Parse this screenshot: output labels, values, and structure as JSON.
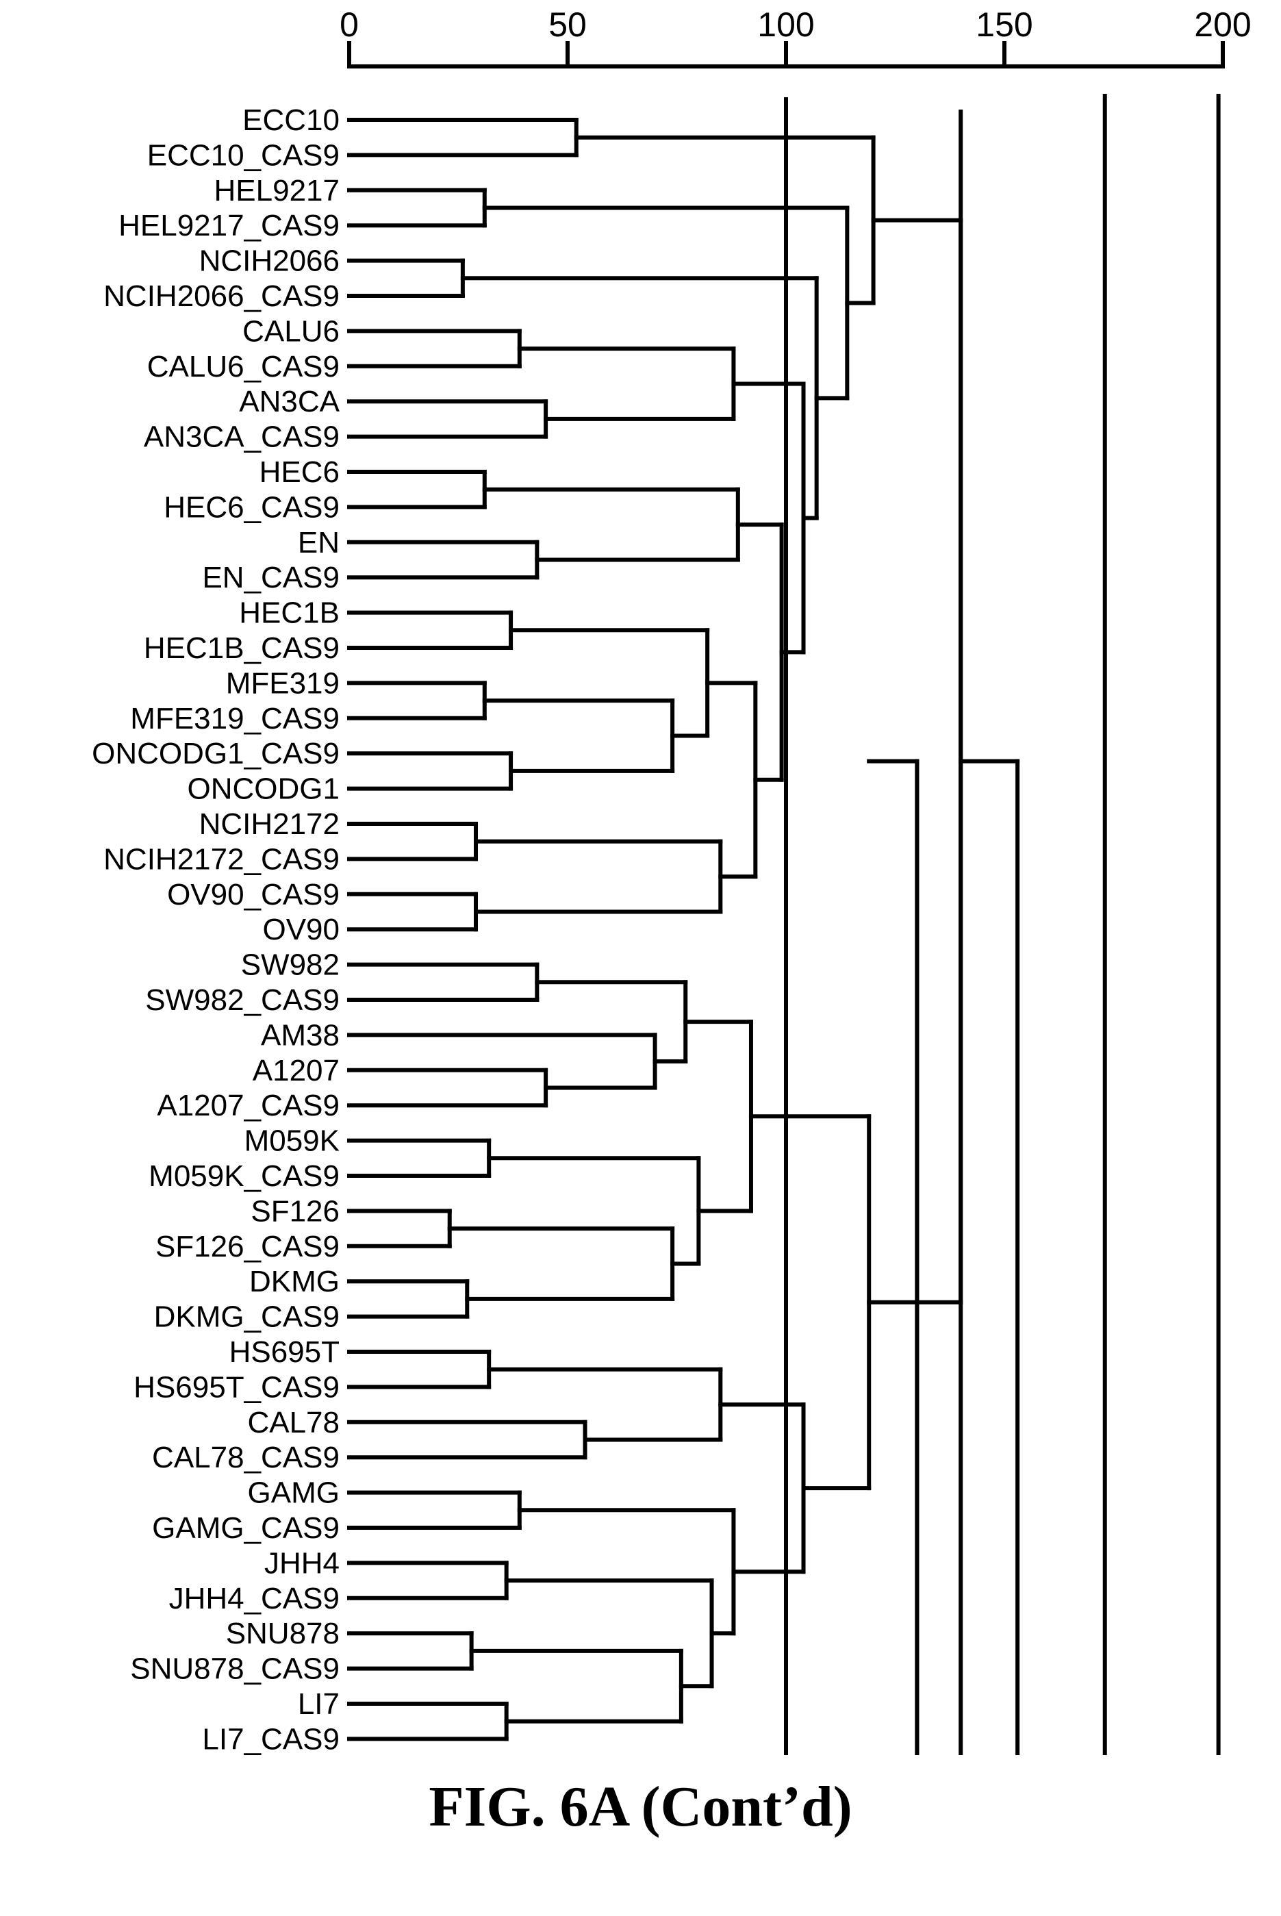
{
  "caption": "FIG. 6A (Cont’d)",
  "chart_data": {
    "type": "dendrogram",
    "orientation": "horizontal",
    "axis_position": "top",
    "xlim": [
      0,
      200
    ],
    "xticks": [
      0,
      50,
      100,
      150,
      200
    ],
    "xtick_labels": [
      "0",
      "50",
      "100",
      "150",
      "200"
    ],
    "leaves": [
      "ECC10",
      "ECC10_CAS9",
      "HEL9217",
      "HEL9217_CAS9",
      "NCIH2066",
      "NCIH2066_CAS9",
      "CALU6",
      "CALU6_CAS9",
      "AN3CA",
      "AN3CA_CAS9",
      "HEC6",
      "HEC6_CAS9",
      "EN",
      "EN_CAS9",
      "HEC1B",
      "HEC1B_CAS9",
      "MFE319",
      "MFE319_CAS9",
      "ONCODG1_CAS9",
      "ONCODG1",
      "NCIH2172",
      "NCIH2172_CAS9",
      "OV90_CAS9",
      "OV90",
      "SW982",
      "SW982_CAS9",
      "AM38",
      "A1207",
      "A1207_CAS9",
      "M059K",
      "M059K_CAS9",
      "SF126",
      "SF126_CAS9",
      "DKMG",
      "DKMG_CAS9",
      "HS695T",
      "HS695T_CAS9",
      "CAL78",
      "CAL78_CAS9",
      "GAMG",
      "GAMG_CAS9",
      "JHH4",
      "JHH4_CAS9",
      "SNU878",
      "SNU878_CAS9",
      "LI7",
      "LI7_CAS9"
    ],
    "merges": [
      {
        "id": "n1",
        "children": [
          0,
          1
        ],
        "height": 52
      },
      {
        "id": "n2",
        "children": [
          2,
          3
        ],
        "height": 31
      },
      {
        "id": "n3",
        "children": [
          4,
          5
        ],
        "height": 26
      },
      {
        "id": "n4",
        "children": [
          6,
          7
        ],
        "height": 39
      },
      {
        "id": "n5",
        "children": [
          8,
          9
        ],
        "height": 45
      },
      {
        "id": "n6",
        "children": [
          10,
          11
        ],
        "height": 31
      },
      {
        "id": "n7",
        "children": [
          12,
          13
        ],
        "height": 43
      },
      {
        "id": "n8",
        "children": [
          14,
          15
        ],
        "height": 37
      },
      {
        "id": "n9",
        "children": [
          16,
          17
        ],
        "height": 31
      },
      {
        "id": "n10",
        "children": [
          18,
          19
        ],
        "height": 37
      },
      {
        "id": "n11",
        "children": [
          20,
          21
        ],
        "height": 29
      },
      {
        "id": "n12",
        "children": [
          22,
          23
        ],
        "height": 29
      },
      {
        "id": "n13",
        "children": [
          24,
          25
        ],
        "height": 43
      },
      {
        "id": "n14",
        "children": [
          27,
          28
        ],
        "height": 45
      },
      {
        "id": "n15",
        "children": [
          29,
          30
        ],
        "height": 32
      },
      {
        "id": "n16",
        "children": [
          31,
          32
        ],
        "height": 23
      },
      {
        "id": "n17",
        "children": [
          33,
          34
        ],
        "height": 27
      },
      {
        "id": "n18",
        "children": [
          35,
          36
        ],
        "height": 32
      },
      {
        "id": "n19",
        "children": [
          37,
          38
        ],
        "height": 54
      },
      {
        "id": "n20",
        "children": [
          39,
          40
        ],
        "height": 39
      },
      {
        "id": "n21",
        "children": [
          41,
          42
        ],
        "height": 36
      },
      {
        "id": "n22",
        "children": [
          43,
          44
        ],
        "height": 28
      },
      {
        "id": "n23",
        "children": [
          45,
          46
        ],
        "height": 36
      },
      {
        "id": "n24",
        "children": [
          "n4",
          "n5"
        ],
        "height": 88
      },
      {
        "id": "n25",
        "children": [
          "n6",
          "n7"
        ],
        "height": 89
      },
      {
        "id": "n26",
        "children": [
          "n9",
          "n10"
        ],
        "height": 74
      },
      {
        "id": "n27",
        "children": [
          "n8",
          "n26"
        ],
        "height": 82
      },
      {
        "id": "n28",
        "children": [
          "n11",
          "n12"
        ],
        "height": 85
      },
      {
        "id": "n29",
        "children": [
          "n27",
          "n28"
        ],
        "height": 93
      },
      {
        "id": "n30",
        "children": [
          "n25",
          "n29"
        ],
        "height": 99
      },
      {
        "id": "n31",
        "children": [
          "n24",
          "n30"
        ],
        "height": 104
      },
      {
        "id": "n32",
        "children": [
          "n3",
          "n31"
        ],
        "height": 107
      },
      {
        "id": "n33",
        "children": [
          "n2",
          "n32"
        ],
        "height": 114
      },
      {
        "id": "n34",
        "children": [
          26,
          "n14"
        ],
        "height": 70
      },
      {
        "id": "n35",
        "children": [
          "n13",
          "n34"
        ],
        "height": 77
      },
      {
        "id": "n36",
        "children": [
          "n16",
          "n17"
        ],
        "height": 74
      },
      {
        "id": "n37",
        "children": [
          "n15",
          "n36"
        ],
        "height": 80
      },
      {
        "id": "n38",
        "children": [
          "n35",
          "n37"
        ],
        "height": 92
      },
      {
        "id": "n39",
        "children": [
          "n18",
          "n19"
        ],
        "height": 85
      },
      {
        "id": "n40",
        "children": [
          "n22",
          "n23"
        ],
        "height": 76
      },
      {
        "id": "n41",
        "children": [
          "n21",
          "n40"
        ],
        "height": 83
      },
      {
        "id": "n42",
        "children": [
          "n20",
          "n41"
        ],
        "height": 88
      },
      {
        "id": "n43",
        "children": [
          "n39",
          "n42"
        ],
        "height": 104
      },
      {
        "id": "n44",
        "children": [
          "n38",
          "n43"
        ],
        "height": 119
      },
      {
        "id": "n45",
        "children": [
          "n1",
          "n33"
        ],
        "height": 120
      },
      {
        "id": "n46",
        "children": [
          "n45",
          "n44"
        ],
        "height": 140
      }
    ],
    "extra_branches_at_root": [
      {
        "from": 140,
        "to": 153
      },
      {
        "from": 119,
        "to": 130
      }
    ],
    "reference_lines": [
      100,
      130,
      140,
      173,
      199
    ]
  }
}
